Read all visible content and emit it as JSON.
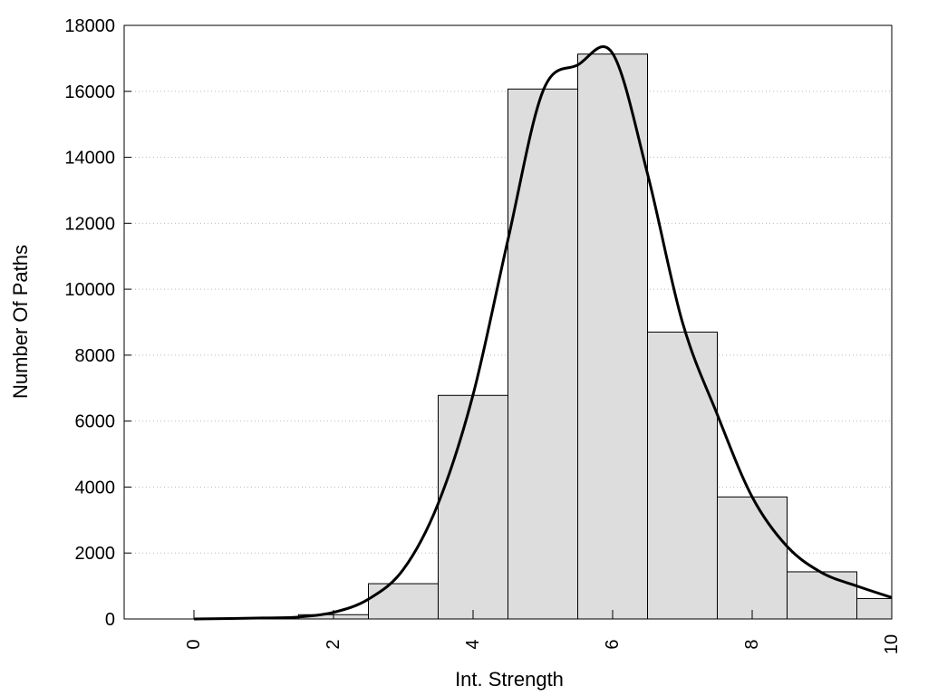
{
  "chart_data": {
    "type": "bar",
    "title": "",
    "xlabel": "Int. Strength",
    "ylabel": "Number Of Paths",
    "xlim": [
      -1,
      10
    ],
    "ylim": [
      0,
      18000
    ],
    "xticks": [
      0,
      2,
      4,
      6,
      8,
      10
    ],
    "yticks": [
      0,
      2000,
      4000,
      6000,
      8000,
      10000,
      12000,
      14000,
      16000,
      18000
    ],
    "grid": "horizontal-dotted",
    "bar_width": 1,
    "bars": [
      {
        "x": 0,
        "value": 0
      },
      {
        "x": 1,
        "value": 0
      },
      {
        "x": 2,
        "value": 130
      },
      {
        "x": 3,
        "value": 1070
      },
      {
        "x": 4,
        "value": 6780
      },
      {
        "x": 5,
        "value": 16070
      },
      {
        "x": 6,
        "value": 17130
      },
      {
        "x": 7,
        "value": 8700
      },
      {
        "x": 8,
        "value": 3700
      },
      {
        "x": 9,
        "value": 1430
      },
      {
        "x": 10,
        "value": 620
      }
    ],
    "curve": {
      "x": [
        0,
        1,
        1.5,
        2,
        2.5,
        3,
        3.5,
        4,
        4.5,
        5,
        5.5,
        6,
        6.5,
        7,
        7.5,
        8,
        8.5,
        9,
        9.5,
        10
      ],
      "y": [
        0,
        30,
        60,
        200,
        600,
        1500,
        3500,
        6800,
        11500,
        16000,
        16800,
        17150,
        13500,
        9000,
        6200,
        3700,
        2200,
        1400,
        1000,
        650
      ]
    },
    "colors": {
      "bar_fill": "#dddddd",
      "bar_stroke": "#000000",
      "curve": "#000000",
      "grid": "#bbbbbb"
    }
  }
}
